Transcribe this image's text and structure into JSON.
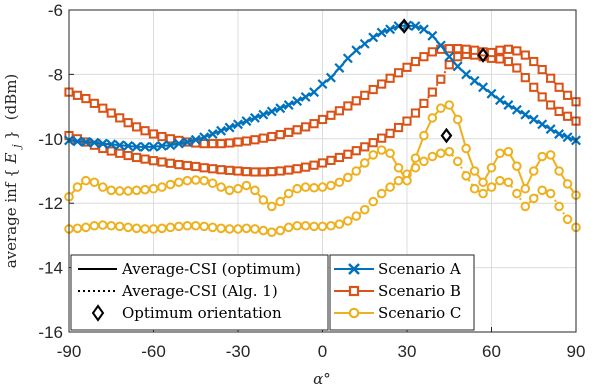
{
  "chart_data": {
    "type": "line",
    "title": "",
    "xlabel": "α°",
    "ylabel": "average inf{E_j} (dBm)",
    "ylabel_parts": {
      "prefix": "average inf",
      "open": "{",
      "var": "E",
      "sub": "j",
      "close": "}",
      "unit": "(dBm)"
    },
    "xlim": [
      -90,
      90
    ],
    "ylim": [
      -16,
      -6
    ],
    "xticks": [
      -90,
      -60,
      -30,
      0,
      30,
      60,
      90
    ],
    "yticks": [
      -16,
      -14,
      -12,
      -10,
      -8,
      -6
    ],
    "xtick_labels": [
      "-90",
      "-60",
      "-30",
      "0",
      "30",
      "60",
      "90"
    ],
    "ytick_labels": [
      "-16",
      "-14",
      "-12",
      "-10",
      "-8",
      "-6"
    ],
    "grid": true,
    "legend_style": {
      "position": "bottom-left",
      "entries": [
        {
          "label": "Average-CSI (optimum)",
          "style": "solid"
        },
        {
          "label": "Average-CSI (Alg. 1)",
          "style": "dotted"
        },
        {
          "label": "Optimum orientation",
          "style": "diamond"
        }
      ]
    },
    "legend_scenarios": {
      "position": "bottom-center",
      "entries": [
        {
          "label": "Scenario A",
          "color": "#0072BD",
          "marker": "x"
        },
        {
          "label": "Scenario B",
          "color": "#D95319",
          "marker": "square"
        },
        {
          "label": "Scenario C",
          "color": "#EDB120",
          "marker": "circle"
        }
      ]
    },
    "x": [
      -90,
      -87,
      -84,
      -81,
      -78,
      -75,
      -72,
      -69,
      -66,
      -63,
      -60,
      -57,
      -54,
      -51,
      -48,
      -45,
      -42,
      -39,
      -36,
      -33,
      -30,
      -27,
      -24,
      -21,
      -18,
      -15,
      -12,
      -9,
      -6,
      -3,
      0,
      3,
      6,
      9,
      12,
      15,
      18,
      21,
      24,
      27,
      30,
      33,
      36,
      39,
      42,
      45,
      48,
      51,
      54,
      57,
      60,
      63,
      66,
      69,
      72,
      75,
      78,
      81,
      84,
      87,
      90
    ],
    "series": [
      {
        "scenario": "A",
        "line": "optimum",
        "color": "#0072BD",
        "marker": "x",
        "values": [
          -10.05,
          -10.08,
          -10.1,
          -10.12,
          -10.15,
          -10.17,
          -10.2,
          -10.22,
          -10.25,
          -10.25,
          -10.25,
          -10.22,
          -10.2,
          -10.15,
          -10.1,
          -10.03,
          -9.95,
          -9.85,
          -9.75,
          -9.65,
          -9.55,
          -9.45,
          -9.35,
          -9.25,
          -9.15,
          -9.05,
          -8.95,
          -8.83,
          -8.7,
          -8.55,
          -8.3,
          -8.1,
          -7.8,
          -7.5,
          -7.25,
          -7.05,
          -6.85,
          -6.7,
          -6.6,
          -6.5,
          -6.48,
          -6.5,
          -6.6,
          -6.8,
          -7.1,
          -7.45,
          -7.75,
          -8.0,
          -8.2,
          -8.4,
          -8.6,
          -8.8,
          -8.95,
          -9.1,
          -9.25,
          -9.4,
          -9.55,
          -9.7,
          -9.85,
          -9.95,
          -10.05
        ]
      },
      {
        "scenario": "B",
        "line": "optimum",
        "color": "#D95319",
        "marker": "square",
        "values": [
          -8.55,
          -8.65,
          -8.75,
          -8.9,
          -9.05,
          -9.2,
          -9.35,
          -9.5,
          -9.63,
          -9.75,
          -9.85,
          -9.93,
          -10.0,
          -10.05,
          -10.1,
          -10.13,
          -10.15,
          -10.15,
          -10.15,
          -10.13,
          -10.1,
          -10.07,
          -10.03,
          -9.98,
          -9.93,
          -9.87,
          -9.8,
          -9.72,
          -9.63,
          -9.53,
          -9.4,
          -9.27,
          -9.13,
          -8.98,
          -8.82,
          -8.65,
          -8.47,
          -8.3,
          -8.12,
          -7.95,
          -7.78,
          -7.6,
          -7.45,
          -7.3,
          -7.22,
          -7.2,
          -7.2,
          -7.22,
          -7.25,
          -7.3,
          -7.32,
          -7.25,
          -7.22,
          -7.27,
          -7.4,
          -7.6,
          -7.85,
          -8.12,
          -8.4,
          -8.65,
          -8.85
        ]
      },
      {
        "scenario": "B",
        "line": "alg1",
        "color": "#D95319",
        "marker": "square",
        "values": [
          -9.9,
          -10.0,
          -10.1,
          -10.2,
          -10.3,
          -10.38,
          -10.45,
          -10.52,
          -10.58,
          -10.63,
          -10.68,
          -10.72,
          -10.76,
          -10.8,
          -10.83,
          -10.86,
          -10.9,
          -10.93,
          -10.96,
          -10.98,
          -11.0,
          -11.02,
          -11.03,
          -11.03,
          -11.02,
          -11.0,
          -10.97,
          -10.93,
          -10.88,
          -10.82,
          -10.75,
          -10.67,
          -10.58,
          -10.48,
          -10.37,
          -10.25,
          -10.12,
          -9.98,
          -9.83,
          -9.65,
          -9.45,
          -9.2,
          -8.9,
          -8.55,
          -8.15,
          -7.7,
          -7.45,
          -7.38,
          -7.4,
          -7.45,
          -7.5,
          -7.52,
          -7.6,
          -7.8,
          -8.1,
          -8.4,
          -8.7,
          -8.95,
          -9.15,
          -9.3,
          -9.45
        ]
      },
      {
        "scenario": "C",
        "line": "optimum",
        "color": "#EDB120",
        "marker": "circle",
        "values": [
          -11.8,
          -11.5,
          -11.3,
          -11.35,
          -11.5,
          -11.6,
          -11.62,
          -11.62,
          -11.6,
          -11.58,
          -11.55,
          -11.5,
          -11.42,
          -11.35,
          -11.3,
          -11.28,
          -11.3,
          -11.38,
          -11.5,
          -11.6,
          -11.55,
          -11.45,
          -11.6,
          -11.9,
          -12.1,
          -11.95,
          -11.7,
          -11.55,
          -11.5,
          -11.52,
          -11.5,
          -11.45,
          -11.35,
          -11.2,
          -11.0,
          -10.75,
          -10.5,
          -10.35,
          -10.45,
          -10.9,
          -11.3,
          -10.6,
          -9.9,
          -9.35,
          -9.05,
          -8.95,
          -9.4,
          -10.3,
          -11.0,
          -11.35,
          -10.9,
          -10.45,
          -10.4,
          -10.85,
          -11.55,
          -11.0,
          -10.55,
          -10.5,
          -11.0,
          -11.4,
          -11.75
        ]
      },
      {
        "scenario": "C",
        "line": "alg1",
        "color": "#EDB120",
        "marker": "circle",
        "values": [
          -12.8,
          -12.78,
          -12.75,
          -12.7,
          -12.68,
          -12.7,
          -12.72,
          -12.75,
          -12.78,
          -12.8,
          -12.8,
          -12.78,
          -12.75,
          -12.72,
          -12.7,
          -12.7,
          -12.72,
          -12.75,
          -12.78,
          -12.8,
          -12.8,
          -12.78,
          -12.8,
          -12.85,
          -12.9,
          -12.85,
          -12.75,
          -12.7,
          -12.7,
          -12.72,
          -12.72,
          -12.7,
          -12.65,
          -12.55,
          -12.4,
          -12.2,
          -11.95,
          -11.7,
          -11.5,
          -11.3,
          -11.1,
          -10.9,
          -10.7,
          -10.55,
          -10.45,
          -10.4,
          -10.7,
          -11.15,
          -11.55,
          -11.7,
          -11.5,
          -11.3,
          -11.35,
          -11.7,
          -12.1,
          -11.85,
          -11.6,
          -11.7,
          -12.1,
          -12.5,
          -12.75
        ]
      }
    ],
    "optimum_points": [
      {
        "scenario": "A",
        "x": 29,
        "y": -6.5
      },
      {
        "scenario": "B",
        "x": 57,
        "y": -7.4
      },
      {
        "scenario": "C",
        "x": 44,
        "y": -9.9
      }
    ]
  }
}
